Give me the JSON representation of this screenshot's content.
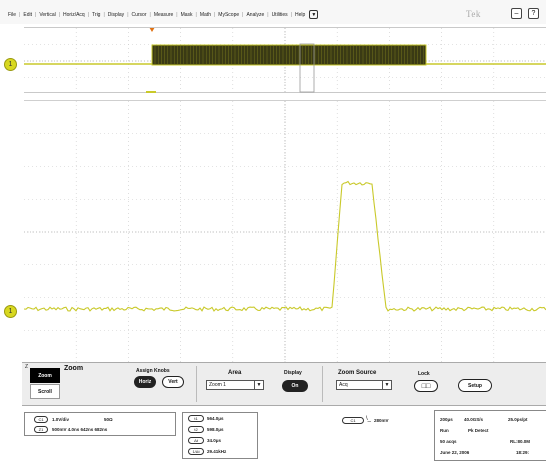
{
  "menu": {
    "items": [
      "File",
      "Edit",
      "Vertical",
      "Horiz/Acq",
      "Trig",
      "Display",
      "Cursor",
      "Measure",
      "Mask",
      "Math",
      "MyScope",
      "Analyze",
      "Utilities",
      "Help"
    ],
    "dropdown_icon": "chevron-down-icon",
    "brand": "Tek",
    "window_buttons": [
      "minimize-icon",
      "help-icon"
    ]
  },
  "colors": {
    "trace": "#c9c92a",
    "trace_dark": "#3a3a14",
    "trigger": "#e07010",
    "grid": "#c8c8c8"
  },
  "overview": {
    "channel_marker": "1",
    "trigger_marker_icon": "trigger-arrow-icon"
  },
  "zoom_view": {
    "channel_marker": "1"
  },
  "controls": {
    "corner": "Z",
    "zoom_tab": "Zoom",
    "scroll_tab": "Scroll",
    "zoom_title": "Zoom",
    "assign_knobs": {
      "title": "Assign Knobs",
      "horiz": "Horiz",
      "vert": "Vert"
    },
    "area": {
      "title": "Area",
      "value": "Zoom 1"
    },
    "display": {
      "title": "Display",
      "value": "On"
    },
    "zoom_source": {
      "title": "Zoom Source",
      "value": "Acq"
    },
    "lock": {
      "title": "Lock"
    },
    "setup": "Setup"
  },
  "status": {
    "ch1_badge": "C1",
    "ch1_scale": "1.0V/div",
    "ch1_impedance": "50Ω",
    "z1_badge": "Z1",
    "z1_line": "500mV  4.0ns  642ns  682ns",
    "cursor_rows": [
      {
        "badge": "t1",
        "value": "564.0μs"
      },
      {
        "badge": "t2",
        "value": "598.0μs"
      },
      {
        "badge": "Δt",
        "value": "34.0μs"
      },
      {
        "badge": "1/Δt",
        "value": "29.41kHz"
      }
    ],
    "trigger_badge": "C1",
    "trigger_level": "280mV",
    "acq": {
      "timebase": "200μs",
      "sample_rate": "40.0GS/s",
      "resolution": "25.0ps/pt",
      "state": "Run",
      "mode": "Pk Detect",
      "acqs": "50 acqs",
      "record": "RL:80.0M",
      "date": "June 22, 2006",
      "time": "18:29:"
    }
  }
}
